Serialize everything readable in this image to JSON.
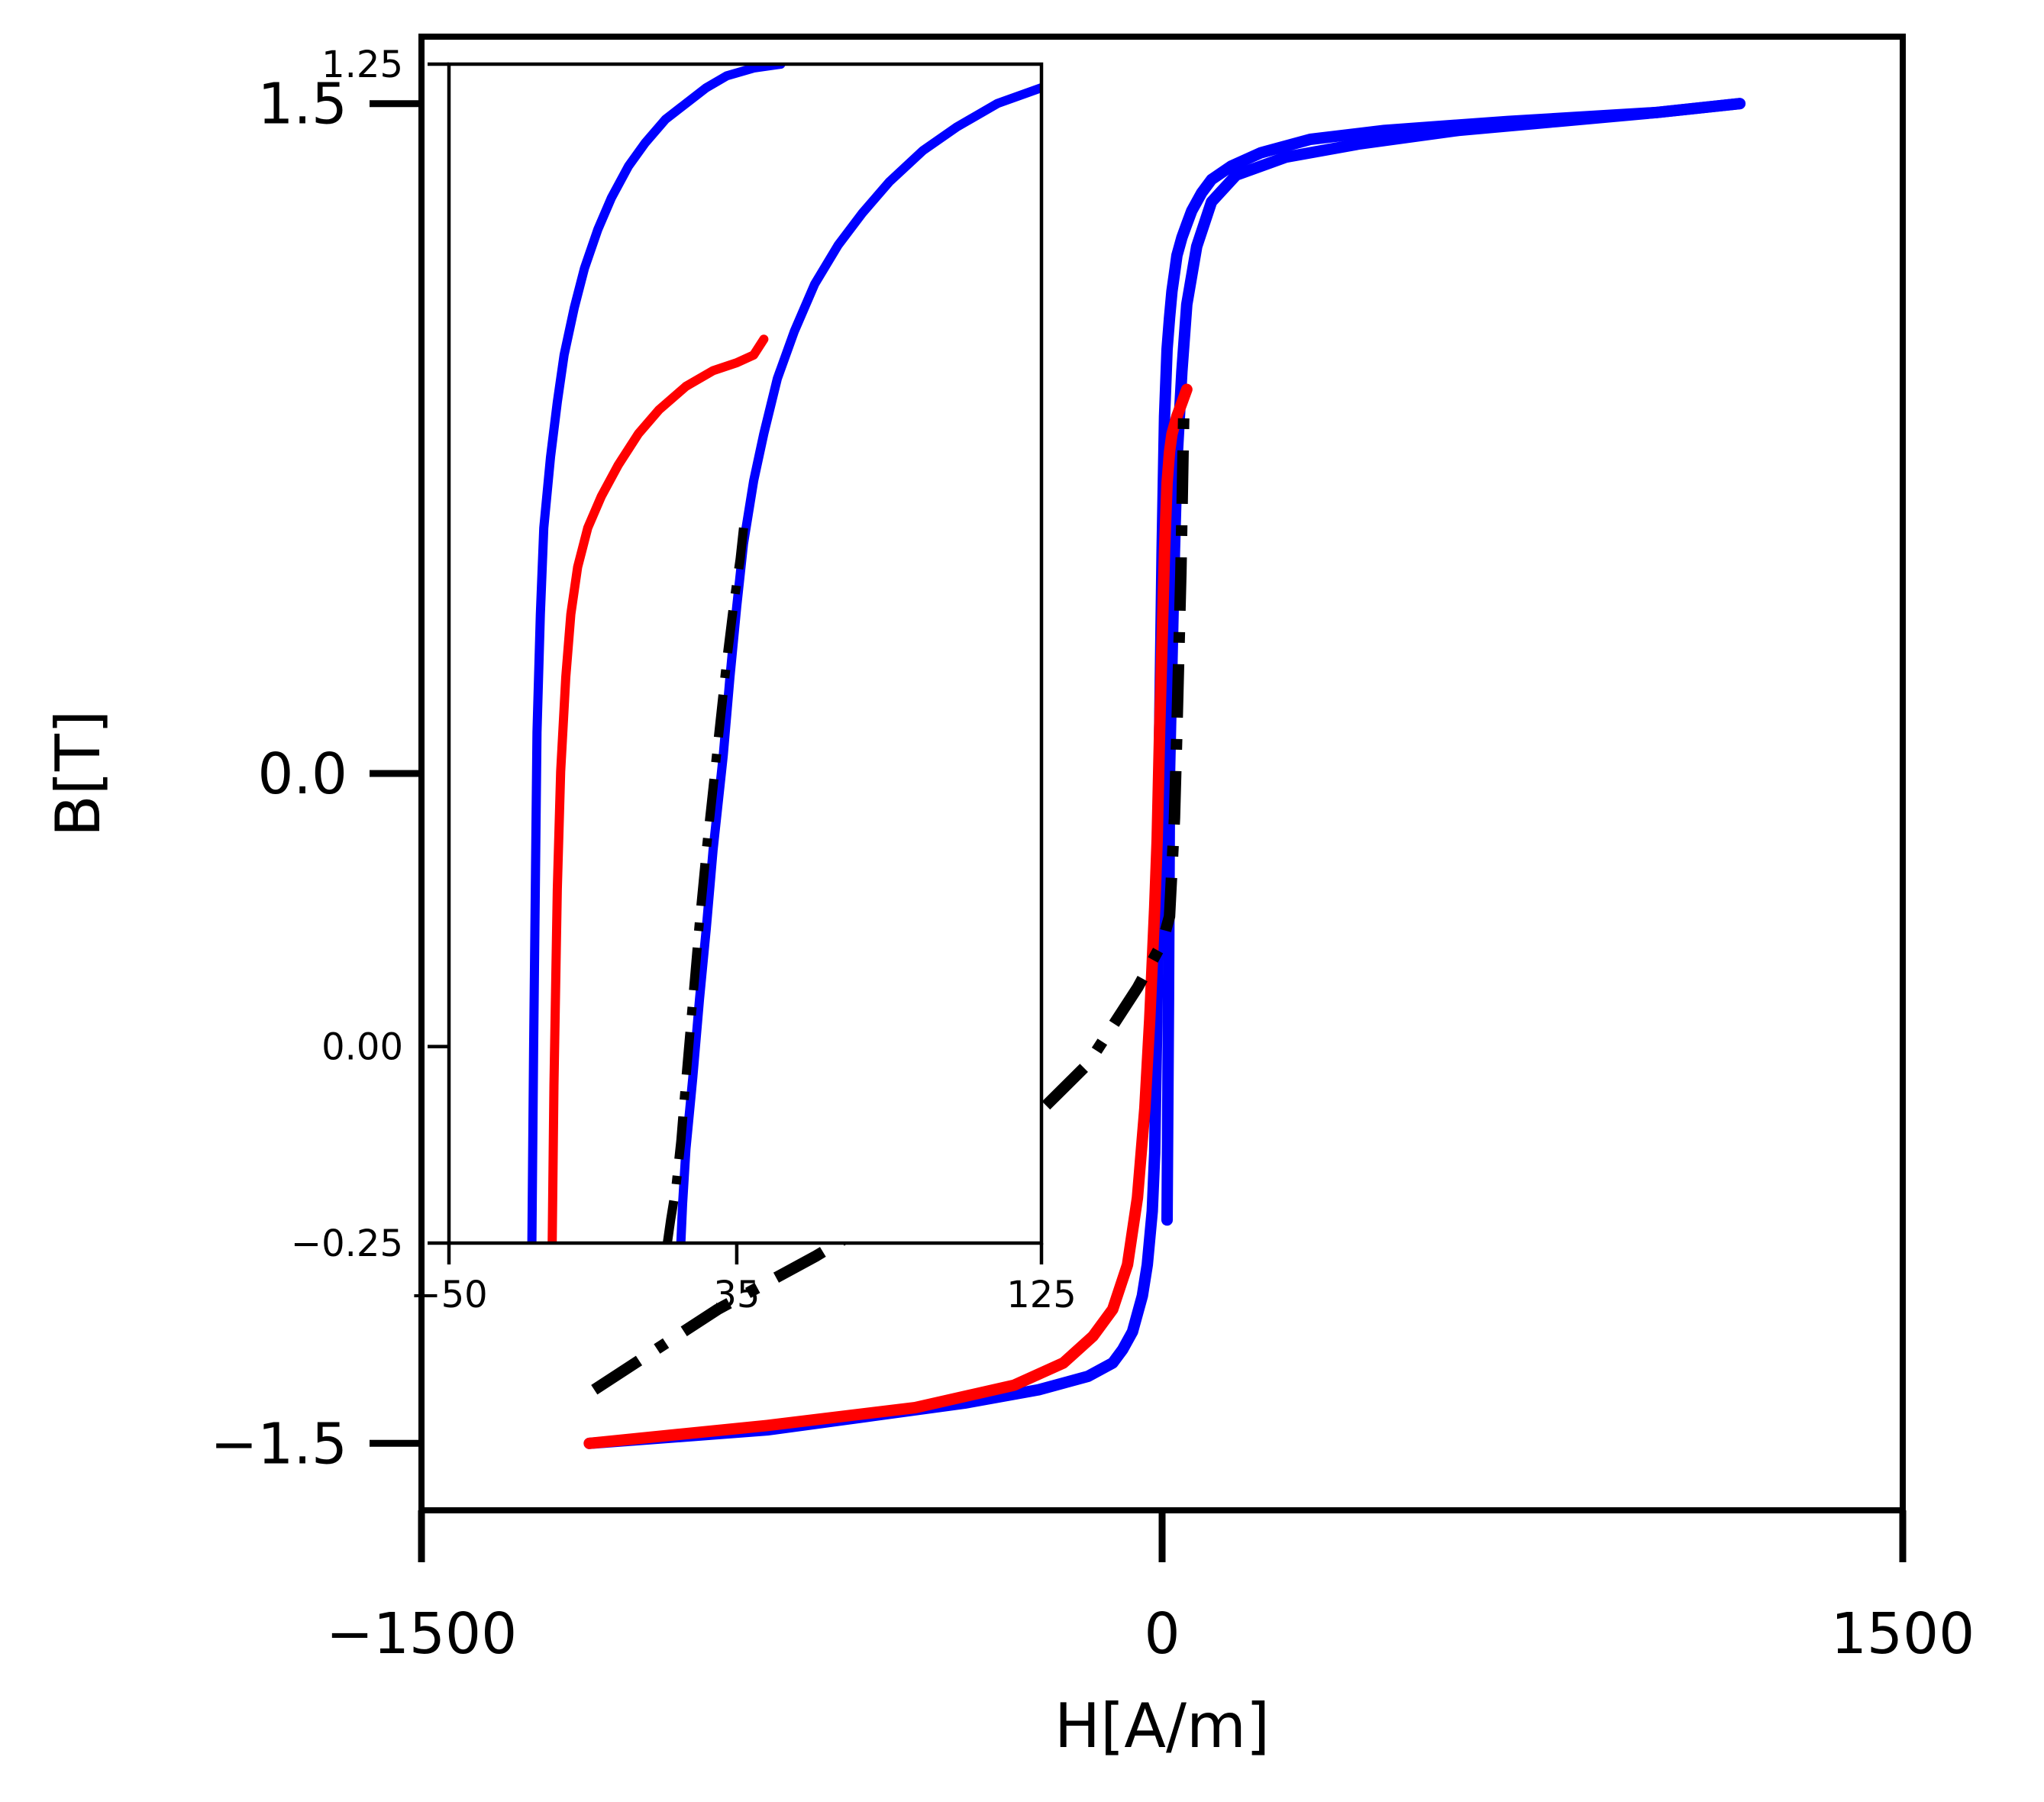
{
  "chart_data": [
    {
      "type": "line",
      "role": "main",
      "xlabel": "H[A/m]",
      "ylabel": "B[T]",
      "xlim": [
        -1500,
        1500
      ],
      "ylim": [
        -1.65,
        1.65
      ],
      "xticks": [
        -1500,
        0,
        1500
      ],
      "xtick_labels": [
        "−1500",
        "0",
        "1500"
      ],
      "yticks": [
        -1.5,
        0.0,
        1.5
      ],
      "ytick_labels": [
        "−1.5",
        "0.0",
        "1.5"
      ],
      "grid": false,
      "legend": "none",
      "series": [
        {
          "color": "#0000ff",
          "style": "solid",
          "x": [
            -1160,
            -800,
            -600,
            -400,
            -250,
            -150,
            -100,
            -80,
            -60,
            -40,
            -30,
            -20,
            -15,
            -10,
            -5,
            0,
            5,
            10,
            15,
            20,
            25,
            30,
            40,
            50,
            60,
            80,
            100,
            140,
            200,
            300,
            450,
            700,
            1000,
            1170
          ],
          "y": [
            -1.5,
            -1.47,
            -1.44,
            -1.41,
            -1.38,
            -1.35,
            -1.32,
            -1.29,
            -1.25,
            -1.17,
            -1.1,
            -0.98,
            -0.85,
            -0.5,
            0.1,
            0.5,
            0.8,
            0.95,
            1.02,
            1.08,
            1.12,
            1.16,
            1.2,
            1.23,
            1.26,
            1.3,
            1.33,
            1.36,
            1.39,
            1.42,
            1.44,
            1.46,
            1.48,
            1.5
          ]
        },
        {
          "color": "#0000ff",
          "style": "solid",
          "x": [
            1170,
            1000,
            800,
            600,
            400,
            250,
            150,
            100,
            70,
            50,
            40,
            30,
            25,
            20,
            15,
            13,
            10
          ],
          "y": [
            1.5,
            1.48,
            1.46,
            1.44,
            1.41,
            1.38,
            1.34,
            1.28,
            1.18,
            1.05,
            0.9,
            0.7,
            0.5,
            0.25,
            0.0,
            -0.5,
            -1.0
          ]
        },
        {
          "color": "#ff0000",
          "style": "solid",
          "x": [
            -1160,
            -800,
            -500,
            -300,
            -200,
            -140,
            -100,
            -70,
            -50,
            -35,
            -25,
            -15,
            -10,
            -5,
            0,
            5,
            10,
            15,
            20,
            30,
            40,
            50
          ],
          "y": [
            -1.5,
            -1.46,
            -1.42,
            -1.37,
            -1.32,
            -1.26,
            -1.2,
            -1.1,
            -0.95,
            -0.75,
            -0.55,
            -0.3,
            -0.15,
            0.1,
            0.3,
            0.5,
            0.65,
            0.72,
            0.76,
            0.8,
            0.83,
            0.86
          ]
        },
        {
          "color": "#000000",
          "style": "dashdot",
          "x": [
            -1150,
            -900,
            -700,
            -550,
            -400,
            -250,
            -150,
            -50,
            0,
            15,
            25,
            30,
            38,
            44
          ],
          "y": [
            -1.38,
            -1.2,
            -1.08,
            -0.98,
            -0.88,
            -0.76,
            -0.65,
            -0.48,
            -0.38,
            -0.32,
            -0.1,
            0.1,
            0.45,
            0.82
          ]
        }
      ]
    },
    {
      "type": "line",
      "role": "inset",
      "xlim": [
        -50,
        125
      ],
      "ylim": [
        -0.25,
        1.25
      ],
      "xticks": [
        -50,
        35,
        125
      ],
      "xtick_labels": [
        "−50",
        "35",
        "125"
      ],
      "yticks": [
        -0.25,
        0.0,
        1.25
      ],
      "ytick_labels": [
        "−0.25",
        "0.00",
        "1.25"
      ],
      "grid": false,
      "legend": "none",
      "series": [
        {
          "color": "#0000ff",
          "style": "solid",
          "x": [
            -25.5,
            -25,
            -24.5,
            -24,
            -23,
            -22,
            -20,
            -18,
            -16,
            -13,
            -10,
            -6,
            -2,
            3,
            8,
            14,
            20,
            26,
            32,
            40,
            48
          ],
          "y": [
            -0.25,
            0.0,
            0.2,
            0.4,
            0.55,
            0.66,
            0.75,
            0.82,
            0.88,
            0.94,
            0.99,
            1.04,
            1.08,
            1.12,
            1.15,
            1.18,
            1.2,
            1.22,
            1.235,
            1.245,
            1.25
          ]
        },
        {
          "color": "#0000ff",
          "style": "solid",
          "x": [
            125,
            112,
            100,
            90,
            80,
            72,
            65,
            58,
            52,
            47,
            43,
            40,
            37,
            35,
            33,
            31,
            28,
            26,
            24,
            22,
            20,
            19,
            18.5
          ],
          "y": [
            1.22,
            1.2,
            1.17,
            1.14,
            1.1,
            1.06,
            1.02,
            0.97,
            0.91,
            0.85,
            0.78,
            0.72,
            0.64,
            0.56,
            0.47,
            0.37,
            0.25,
            0.15,
            0.06,
            -0.04,
            -0.13,
            -0.2,
            -0.25
          ]
        },
        {
          "color": "#ff0000",
          "style": "solid",
          "x": [
            -19.5,
            -19,
            -18,
            -17,
            -15.5,
            -14,
            -12,
            -9,
            -5,
            0,
            6,
            12,
            20,
            28,
            35,
            40,
            43
          ],
          "y": [
            -0.25,
            -0.05,
            0.2,
            0.35,
            0.47,
            0.55,
            0.61,
            0.66,
            0.7,
            0.74,
            0.78,
            0.81,
            0.84,
            0.86,
            0.87,
            0.88,
            0.9
          ]
        },
        {
          "color": "#000000",
          "style": "dashdot",
          "x": [
            14.5,
            15.5,
            17,
            18.5,
            20,
            22,
            24,
            26,
            28,
            30,
            32,
            34,
            36,
            37
          ],
          "y": [
            -0.25,
            -0.22,
            -0.18,
            -0.12,
            -0.04,
            0.06,
            0.16,
            0.25,
            0.33,
            0.41,
            0.49,
            0.56,
            0.62,
            0.66
          ]
        }
      ]
    }
  ]
}
